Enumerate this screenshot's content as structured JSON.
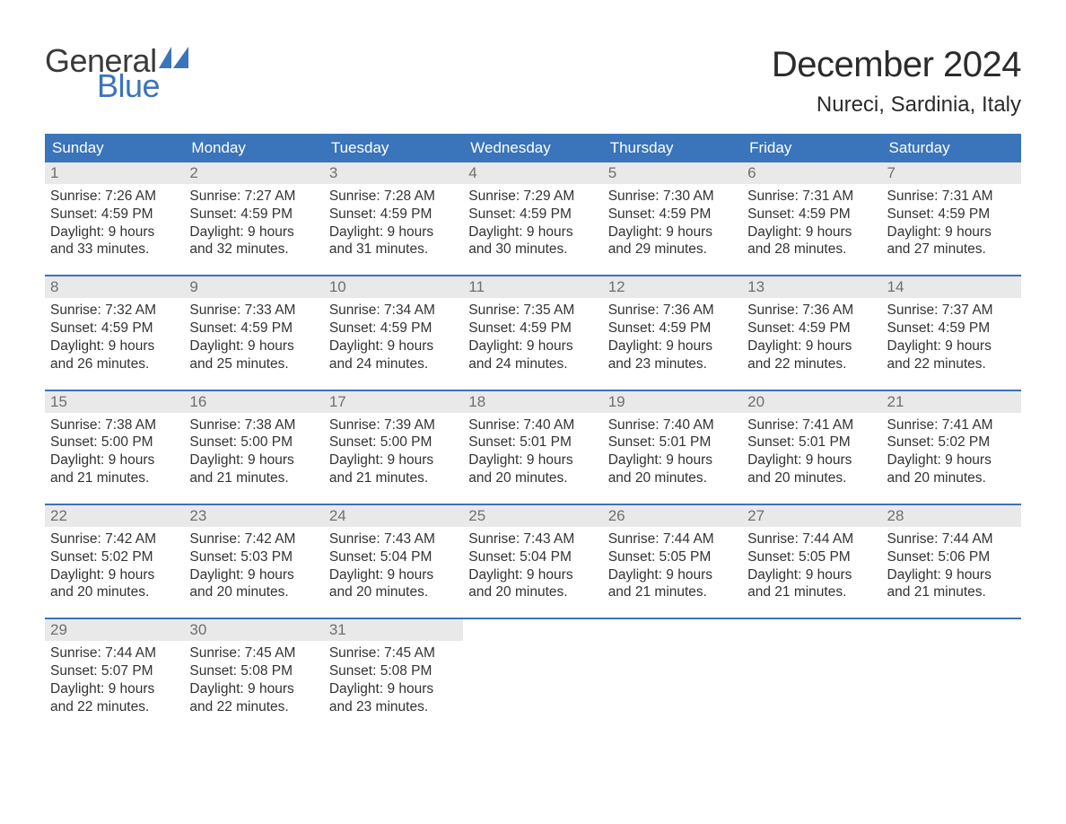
{
  "brand": {
    "word1": "General",
    "word2": "Blue",
    "text_color": "#3a3a3a",
    "accent_color": "#3a74ba"
  },
  "title": "December 2024",
  "location": "Nureci, Sardinia, Italy",
  "colors": {
    "header_bg": "#3a74ba",
    "header_text": "#ffffff",
    "daynum_band": "#e9e9e9",
    "daynum_text": "#6f6f6f",
    "body_text": "#333333",
    "week_divider": "#3a74ba",
    "page_bg": "#ffffff"
  },
  "typography": {
    "title_fontsize": 40,
    "location_fontsize": 24,
    "dayhead_fontsize": 17,
    "body_fontsize": 15.5,
    "font_family": "Arial"
  },
  "day_headers": [
    "Sunday",
    "Monday",
    "Tuesday",
    "Wednesday",
    "Thursday",
    "Friday",
    "Saturday"
  ],
  "labels": {
    "sunrise_prefix": "Sunrise: ",
    "sunset_prefix": "Sunset: ",
    "daylight_prefix": "Daylight: ",
    "and_minutes_prefix": "and ",
    "minutes_suffix": " minutes."
  },
  "weeks": [
    [
      {
        "n": "1",
        "sunrise": "7:26 AM",
        "sunset": "4:59 PM",
        "dl_h": "9 hours",
        "dl_m": "33"
      },
      {
        "n": "2",
        "sunrise": "7:27 AM",
        "sunset": "4:59 PM",
        "dl_h": "9 hours",
        "dl_m": "32"
      },
      {
        "n": "3",
        "sunrise": "7:28 AM",
        "sunset": "4:59 PM",
        "dl_h": "9 hours",
        "dl_m": "31"
      },
      {
        "n": "4",
        "sunrise": "7:29 AM",
        "sunset": "4:59 PM",
        "dl_h": "9 hours",
        "dl_m": "30"
      },
      {
        "n": "5",
        "sunrise": "7:30 AM",
        "sunset": "4:59 PM",
        "dl_h": "9 hours",
        "dl_m": "29"
      },
      {
        "n": "6",
        "sunrise": "7:31 AM",
        "sunset": "4:59 PM",
        "dl_h": "9 hours",
        "dl_m": "28"
      },
      {
        "n": "7",
        "sunrise": "7:31 AM",
        "sunset": "4:59 PM",
        "dl_h": "9 hours",
        "dl_m": "27"
      }
    ],
    [
      {
        "n": "8",
        "sunrise": "7:32 AM",
        "sunset": "4:59 PM",
        "dl_h": "9 hours",
        "dl_m": "26"
      },
      {
        "n": "9",
        "sunrise": "7:33 AM",
        "sunset": "4:59 PM",
        "dl_h": "9 hours",
        "dl_m": "25"
      },
      {
        "n": "10",
        "sunrise": "7:34 AM",
        "sunset": "4:59 PM",
        "dl_h": "9 hours",
        "dl_m": "24"
      },
      {
        "n": "11",
        "sunrise": "7:35 AM",
        "sunset": "4:59 PM",
        "dl_h": "9 hours",
        "dl_m": "24"
      },
      {
        "n": "12",
        "sunrise": "7:36 AM",
        "sunset": "4:59 PM",
        "dl_h": "9 hours",
        "dl_m": "23"
      },
      {
        "n": "13",
        "sunrise": "7:36 AM",
        "sunset": "4:59 PM",
        "dl_h": "9 hours",
        "dl_m": "22"
      },
      {
        "n": "14",
        "sunrise": "7:37 AM",
        "sunset": "4:59 PM",
        "dl_h": "9 hours",
        "dl_m": "22"
      }
    ],
    [
      {
        "n": "15",
        "sunrise": "7:38 AM",
        "sunset": "5:00 PM",
        "dl_h": "9 hours",
        "dl_m": "21"
      },
      {
        "n": "16",
        "sunrise": "7:38 AM",
        "sunset": "5:00 PM",
        "dl_h": "9 hours",
        "dl_m": "21"
      },
      {
        "n": "17",
        "sunrise": "7:39 AM",
        "sunset": "5:00 PM",
        "dl_h": "9 hours",
        "dl_m": "21"
      },
      {
        "n": "18",
        "sunrise": "7:40 AM",
        "sunset": "5:01 PM",
        "dl_h": "9 hours",
        "dl_m": "20"
      },
      {
        "n": "19",
        "sunrise": "7:40 AM",
        "sunset": "5:01 PM",
        "dl_h": "9 hours",
        "dl_m": "20"
      },
      {
        "n": "20",
        "sunrise": "7:41 AM",
        "sunset": "5:01 PM",
        "dl_h": "9 hours",
        "dl_m": "20"
      },
      {
        "n": "21",
        "sunrise": "7:41 AM",
        "sunset": "5:02 PM",
        "dl_h": "9 hours",
        "dl_m": "20"
      }
    ],
    [
      {
        "n": "22",
        "sunrise": "7:42 AM",
        "sunset": "5:02 PM",
        "dl_h": "9 hours",
        "dl_m": "20"
      },
      {
        "n": "23",
        "sunrise": "7:42 AM",
        "sunset": "5:03 PM",
        "dl_h": "9 hours",
        "dl_m": "20"
      },
      {
        "n": "24",
        "sunrise": "7:43 AM",
        "sunset": "5:04 PM",
        "dl_h": "9 hours",
        "dl_m": "20"
      },
      {
        "n": "25",
        "sunrise": "7:43 AM",
        "sunset": "5:04 PM",
        "dl_h": "9 hours",
        "dl_m": "20"
      },
      {
        "n": "26",
        "sunrise": "7:44 AM",
        "sunset": "5:05 PM",
        "dl_h": "9 hours",
        "dl_m": "21"
      },
      {
        "n": "27",
        "sunrise": "7:44 AM",
        "sunset": "5:05 PM",
        "dl_h": "9 hours",
        "dl_m": "21"
      },
      {
        "n": "28",
        "sunrise": "7:44 AM",
        "sunset": "5:06 PM",
        "dl_h": "9 hours",
        "dl_m": "21"
      }
    ],
    [
      {
        "n": "29",
        "sunrise": "7:44 AM",
        "sunset": "5:07 PM",
        "dl_h": "9 hours",
        "dl_m": "22"
      },
      {
        "n": "30",
        "sunrise": "7:45 AM",
        "sunset": "5:08 PM",
        "dl_h": "9 hours",
        "dl_m": "22"
      },
      {
        "n": "31",
        "sunrise": "7:45 AM",
        "sunset": "5:08 PM",
        "dl_h": "9 hours",
        "dl_m": "23"
      },
      null,
      null,
      null,
      null
    ]
  ]
}
